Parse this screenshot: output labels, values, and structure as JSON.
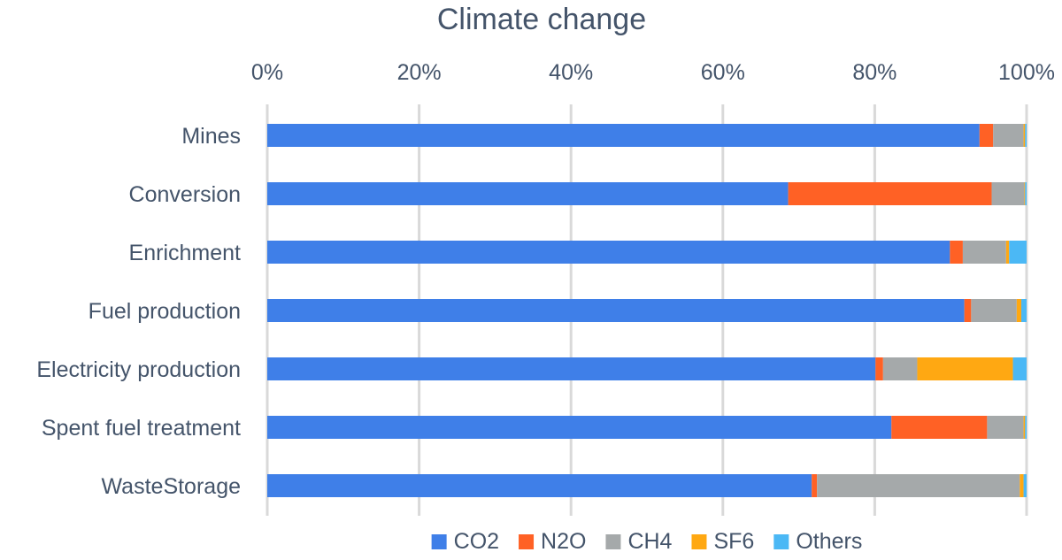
{
  "chart_data": {
    "type": "bar",
    "orientation": "horizontal",
    "stacked": "percent",
    "title": "Climate change",
    "categories": [
      "Mines",
      "Conversion",
      "Enrichment",
      "Fuel production",
      "Electricity production",
      "Spent fuel treatment",
      "WasteStorage"
    ],
    "x_ticks": [
      "0%",
      "20%",
      "40%",
      "60%",
      "80%",
      "100%"
    ],
    "xlim": [
      0,
      100
    ],
    "x_axis_position": "top",
    "grid": true,
    "legend_position": "bottom",
    "series": [
      {
        "name": "CO2",
        "color": "#3f7fe8",
        "values": [
          93.8,
          68.6,
          89.9,
          91.8,
          80.1,
          82.2,
          71.7
        ]
      },
      {
        "name": "N2O",
        "color": "#ff6125",
        "values": [
          1.8,
          26.8,
          1.7,
          0.9,
          1.0,
          12.6,
          0.7
        ]
      },
      {
        "name": "CH4",
        "color": "#a5a9aa",
        "values": [
          4.0,
          4.3,
          5.7,
          6.0,
          4.5,
          4.8,
          26.7
        ]
      },
      {
        "name": "SF6",
        "color": "#ffa812",
        "values": [
          0.2,
          0.1,
          0.4,
          0.6,
          12.6,
          0.2,
          0.5
        ]
      },
      {
        "name": "Others",
        "color": "#4bb8f5",
        "values": [
          0.2,
          0.2,
          2.3,
          0.7,
          1.8,
          0.2,
          0.4
        ]
      }
    ]
  }
}
